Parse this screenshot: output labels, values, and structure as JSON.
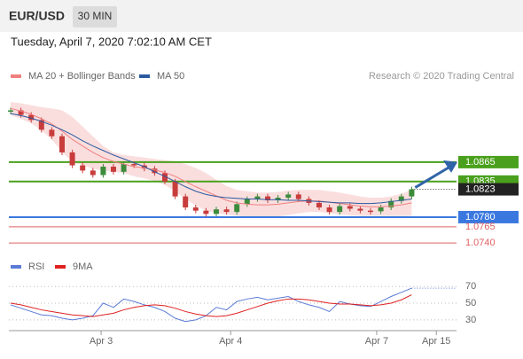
{
  "header": {
    "symbol": "EUR/USD",
    "interval": "30 MIN",
    "timestamp": "Tuesday, April 7, 2020 7:02:10 AM CET"
  },
  "chart_data": [
    {
      "type": "candlestick",
      "credit": "Research © 2020 Trading Central",
      "ylim": [
        1.0732,
        1.0958
      ],
      "xlim": [
        0,
        43
      ],
      "xticks": [
        {
          "value": 8.8,
          "label": "Apr 3"
        },
        {
          "value": 21.4,
          "label": "Apr 4"
        },
        {
          "value": 35.6,
          "label": "Apr 7"
        },
        {
          "value": 41.4,
          "label": "Apr 15"
        }
      ],
      "series": [
        {
          "name": "Price",
          "color": "#2e8b2e",
          "values": [
            1.0945,
            1.0938,
            1.093,
            1.0915,
            1.0905,
            1.088,
            1.086,
            1.0852,
            1.0845,
            1.0858,
            1.085,
            1.0862,
            1.086,
            1.0855,
            1.0848,
            1.0835,
            1.0812,
            1.0795,
            1.079,
            1.0785,
            1.0792,
            1.0788,
            1.08,
            1.0808,
            1.0812,
            1.0806,
            1.081,
            1.0815,
            1.0808,
            1.0802,
            1.0795,
            1.0788,
            1.0797,
            1.0793,
            1.079,
            1.0789,
            1.0795,
            1.0805,
            1.0812,
            1.0823
          ]
        },
        {
          "name": "MA 20 + Bollinger Bands",
          "color": "#f08080",
          "values": [
            1.0948,
            1.0944,
            1.0939,
            1.0932,
            1.0924,
            1.0913,
            1.09,
            1.089,
            1.088,
            1.0872,
            1.0866,
            1.0862,
            1.0858,
            1.0856,
            1.0853,
            1.0849,
            1.0843,
            1.0835,
            1.0827,
            1.082,
            1.0813,
            1.0806,
            1.0802,
            1.08,
            1.0799,
            1.0799,
            1.08,
            1.0802,
            1.0804,
            1.0805,
            1.0805,
            1.0803,
            1.0801,
            1.0799,
            1.0797,
            1.0796,
            1.0796,
            1.0797,
            1.0799,
            1.0802
          ],
          "upper": [
            1.0958,
            1.0956,
            1.0953,
            1.095,
            1.0948,
            1.0945,
            1.0935,
            1.092,
            1.0905,
            1.089,
            1.088,
            1.0876,
            1.0874,
            1.0872,
            1.087,
            1.0868,
            1.0866,
            1.0862,
            1.0856,
            1.0848,
            1.0838,
            1.0828,
            1.0822,
            1.082,
            1.0818,
            1.0818,
            1.0819,
            1.0821,
            1.0822,
            1.0822,
            1.0822,
            1.082,
            1.0818,
            1.0815,
            1.0812,
            1.081,
            1.081,
            1.0812,
            1.0816,
            1.0822
          ],
          "lower": [
            1.0938,
            1.0932,
            1.0925,
            1.0914,
            1.09,
            1.0881,
            1.0865,
            1.086,
            1.0855,
            1.0852,
            1.085,
            1.0848,
            1.0843,
            1.084,
            1.0836,
            1.083,
            1.082,
            1.0808,
            1.0798,
            1.079,
            1.0786,
            1.0784,
            1.0782,
            1.0781,
            1.078,
            1.078,
            1.0781,
            1.0783,
            1.0786,
            1.0788,
            1.0788,
            1.0786,
            1.0784,
            1.0783,
            1.0782,
            1.0782,
            1.0782,
            1.0782,
            1.0782,
            1.0782
          ]
        },
        {
          "name": "MA 50",
          "color": "#2c5aa0",
          "values": [
            1.094,
            1.0937,
            1.0933,
            1.0928,
            1.0922,
            1.0915,
            1.0907,
            1.0898,
            1.089,
            1.0883,
            1.0876,
            1.087,
            1.0864,
            1.0858,
            1.085,
            1.0843,
            1.0835,
            1.0827,
            1.082,
            1.0815,
            1.0812,
            1.081,
            1.0809,
            1.0808,
            1.0808,
            1.0807,
            1.0807,
            1.0806,
            1.0806,
            1.0805,
            1.0804,
            1.0803,
            1.0802,
            1.0802,
            1.0801,
            1.0801,
            1.0802,
            1.0804,
            1.0806,
            1.0808
          ]
        }
      ],
      "levels": [
        {
          "value": 1.0865,
          "label": "1.0865",
          "color": "#4aa01c",
          "boxed": true
        },
        {
          "value": 1.0835,
          "label": "1.0835",
          "color": "#4aa01c",
          "boxed": true
        },
        {
          "value": 1.0823,
          "label": "1.0823",
          "color": "#222222",
          "boxed": true
        },
        {
          "value": 1.078,
          "label": "1.0780",
          "color": "#3a78e0",
          "boxed": true
        },
        {
          "value": 1.0765,
          "label": "1.0765",
          "color": "#e06060",
          "boxed": false
        },
        {
          "value": 1.074,
          "label": "1.0740",
          "color": "#e06060",
          "boxed": false
        }
      ]
    },
    {
      "type": "line",
      "ylim": [
        15,
        84
      ],
      "yticks": [
        70,
        50,
        30
      ],
      "series": [
        {
          "name": "RSI",
          "color": "#5b7bd5",
          "values": [
            48,
            44,
            40,
            36,
            35,
            32,
            30,
            32,
            35,
            50,
            45,
            55,
            52,
            48,
            45,
            40,
            32,
            28,
            30,
            35,
            45,
            42,
            52,
            55,
            57,
            54,
            56,
            58,
            52,
            48,
            45,
            40,
            52,
            49,
            47,
            46,
            52,
            58,
            63,
            68
          ]
        },
        {
          "name": "9MA",
          "color": "#e02020",
          "values": [
            50,
            48,
            45,
            42,
            40,
            38,
            36,
            35,
            34,
            36,
            38,
            42,
            45,
            47,
            48,
            47,
            44,
            40,
            37,
            35,
            34,
            35,
            38,
            42,
            46,
            50,
            53,
            55,
            55,
            54,
            52,
            50,
            49,
            49,
            48,
            47,
            48,
            50,
            54,
            60
          ]
        }
      ]
    }
  ]
}
